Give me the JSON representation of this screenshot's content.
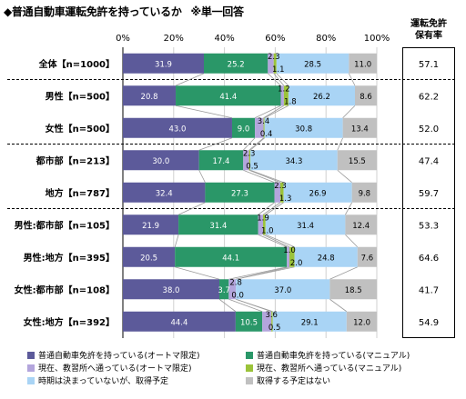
{
  "page": {
    "title": "◆普通自動車運転免許を持っているか",
    "note": "※単一回答",
    "rate_header": [
      "運転免許",
      "保有率"
    ]
  },
  "colors": {
    "auto": "#5c5a9a",
    "manual": "#2a9768",
    "school_auto": "#b3a5dc",
    "school_manual": "#9bc33a",
    "plan": "#a9d4f5",
    "no_plan": "#c0c0c0"
  },
  "chart_data": {
    "type": "bar",
    "orientation": "horizontal",
    "stacked": true,
    "x_ticks": [
      "0%",
      "20%",
      "40%",
      "60%",
      "80%",
      "100%"
    ],
    "xlim": [
      0,
      100
    ],
    "categories": [
      "全体【n=1000】",
      "男性【n=500】",
      "女性【n=500】",
      "都市部【n=213】",
      "地方【n=787】",
      "男性:都市部【n=105】",
      "男性:地方【n=395】",
      "女性:都市部【n=108】",
      "女性:地方【n=392】"
    ],
    "series": [
      {
        "name": "普通自動車免許を持っている(オートマ限定)",
        "color": "#5c5a9a",
        "values": [
          31.9,
          20.8,
          43.0,
          30.0,
          32.4,
          21.9,
          20.5,
          38.0,
          44.4
        ]
      },
      {
        "name": "普通自動車免許を持っている(マニュアル)",
        "color": "#2a9768",
        "values": [
          25.2,
          41.4,
          9.0,
          17.4,
          27.3,
          31.4,
          44.1,
          3.7,
          10.5
        ]
      },
      {
        "name": "現在、教習所へ通っている(オートマ限定)",
        "color": "#b3a5dc",
        "values": [
          2.3,
          1.2,
          3.4,
          2.3,
          2.3,
          1.9,
          1.0,
          2.8,
          3.6
        ]
      },
      {
        "name": "現在、教習所へ通っている(マニュアル)",
        "color": "#9bc33a",
        "values": [
          1.1,
          1.8,
          0.4,
          0.5,
          1.3,
          1.0,
          2.0,
          0.0,
          0.5
        ]
      },
      {
        "name": "時期は決まっていないが、取得予定",
        "color": "#a9d4f5",
        "values": [
          28.5,
          26.2,
          30.8,
          34.3,
          26.9,
          31.4,
          24.8,
          37.0,
          29.1
        ]
      },
      {
        "name": "取得する予定はない",
        "color": "#c0c0c0",
        "values": [
          11.0,
          8.6,
          13.4,
          15.5,
          9.8,
          12.4,
          7.6,
          18.5,
          12.0
        ]
      }
    ],
    "rates": [
      "57.1",
      "62.2",
      "52.0",
      "47.4",
      "59.7",
      "53.3",
      "64.6",
      "41.7",
      "54.9"
    ],
    "group_separators_after": [
      0,
      2,
      4
    ],
    "legend_placement": "bottom"
  }
}
